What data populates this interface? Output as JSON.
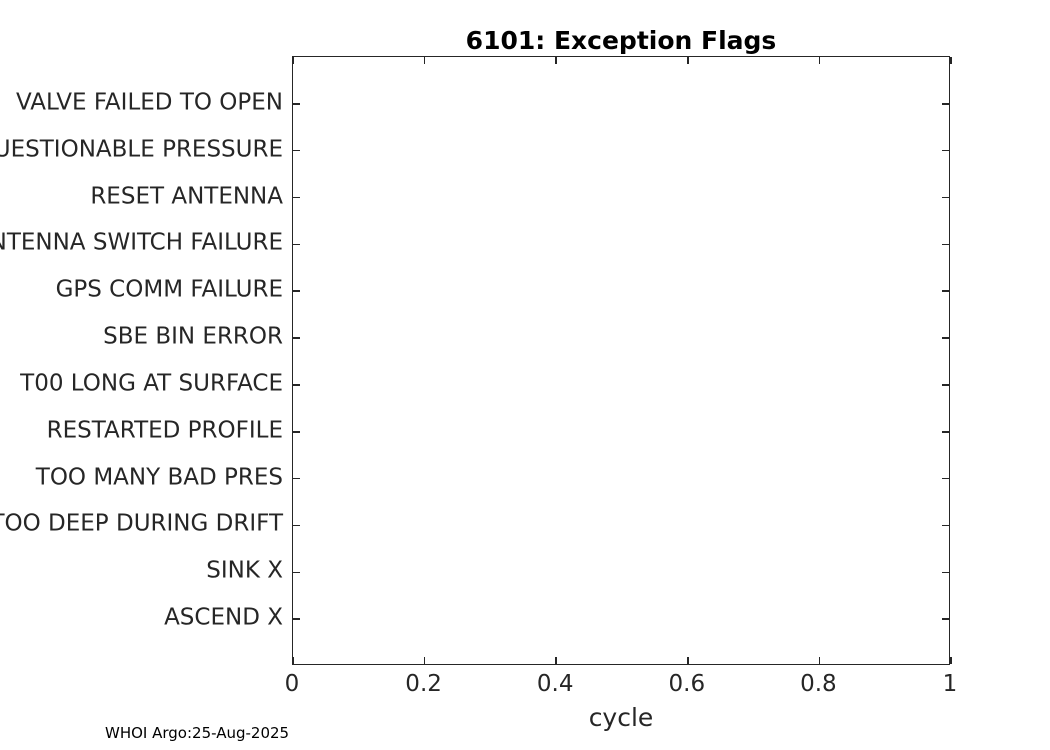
{
  "chart_data": {
    "type": "scatter",
    "title": "6101: Exception Flags",
    "xlabel": "cycle",
    "ylabel": "",
    "xlim": [
      0,
      1
    ],
    "x_ticks": [
      0,
      0.2,
      0.4,
      0.6,
      0.8,
      1
    ],
    "x_tick_labels": [
      "0",
      "0.2",
      "0.4",
      "0.6",
      "0.8",
      "1"
    ],
    "y_categories_top_to_bottom": [
      "VALVE FAILED TO OPEN",
      "QUESTIONABLE PRESSURE",
      "RESET ANTENNA",
      "ANTENNA SWITCH FAILURE",
      "GPS COMM FAILURE",
      "SBE BIN ERROR",
      "T00 LONG AT SURFACE",
      "RESTARTED PROFILE",
      "TOO MANY BAD PRES",
      "TOO DEEP DURING DRIFT",
      "SINK X",
      "ASCEND X"
    ],
    "points": [],
    "grid": false,
    "box": true,
    "tick_direction": "in",
    "legend": null
  },
  "footer": {
    "text": "WHOI Argo:25-Aug-2025"
  },
  "colors": {
    "background": "#ffffff",
    "axis": "#262626",
    "tick_text": "#262626",
    "title_text": "#000000",
    "footer_text": "#000000"
  }
}
